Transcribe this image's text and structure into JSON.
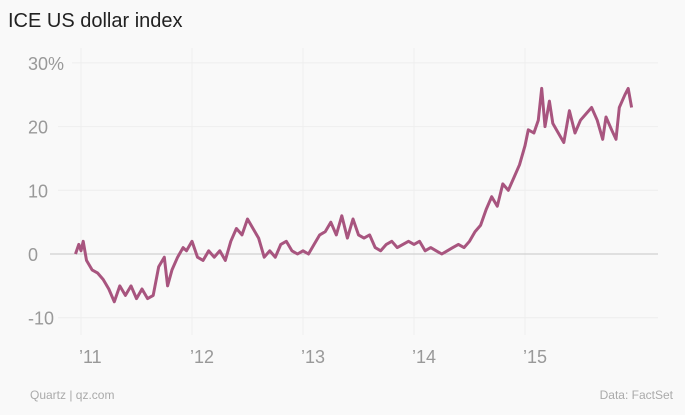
{
  "chart_data": {
    "type": "line",
    "title": "ICE US dollar index",
    "xlabel": "",
    "ylabel": "",
    "ylim": [
      -10,
      30
    ],
    "xlim": [
      2010.9,
      2016.2
    ],
    "y_ticks": [
      {
        "value": 30,
        "label": "30%"
      },
      {
        "value": 20,
        "label": "20"
      },
      {
        "value": 10,
        "label": "10"
      },
      {
        "value": 0,
        "label": "0"
      },
      {
        "value": -10,
        "label": "-10"
      }
    ],
    "x_ticks": [
      {
        "value": 2011,
        "label": "’11"
      },
      {
        "value": 2012,
        "label": "’12"
      },
      {
        "value": 2013,
        "label": "’13"
      },
      {
        "value": 2014,
        "label": "’14"
      },
      {
        "value": 2015,
        "label": "’15"
      }
    ],
    "grid": true,
    "series": [
      {
        "name": "ICE US dollar index",
        "color": "#a8557f",
        "x": [
          2010.95,
          2010.98,
          2011.0,
          2011.02,
          2011.05,
          2011.1,
          2011.15,
          2011.2,
          2011.25,
          2011.3,
          2011.35,
          2011.4,
          2011.45,
          2011.5,
          2011.55,
          2011.6,
          2011.65,
          2011.7,
          2011.75,
          2011.78,
          2011.82,
          2011.87,
          2011.92,
          2011.95,
          2012.0,
          2012.05,
          2012.1,
          2012.15,
          2012.2,
          2012.25,
          2012.3,
          2012.35,
          2012.4,
          2012.45,
          2012.5,
          2012.55,
          2012.6,
          2012.65,
          2012.7,
          2012.75,
          2012.8,
          2012.85,
          2012.9,
          2012.95,
          2013.0,
          2013.05,
          2013.1,
          2013.15,
          2013.2,
          2013.25,
          2013.3,
          2013.35,
          2013.4,
          2013.45,
          2013.5,
          2013.55,
          2013.6,
          2013.65,
          2013.7,
          2013.75,
          2013.8,
          2013.85,
          2013.9,
          2013.95,
          2014.0,
          2014.05,
          2014.1,
          2014.15,
          2014.2,
          2014.25,
          2014.3,
          2014.35,
          2014.4,
          2014.45,
          2014.5,
          2014.55,
          2014.6,
          2014.65,
          2014.7,
          2014.75,
          2014.8,
          2014.85,
          2014.9,
          2014.95,
          2015.0,
          2015.03,
          2015.08,
          2015.12,
          2015.15,
          2015.18,
          2015.22,
          2015.25,
          2015.3,
          2015.35,
          2015.4,
          2015.45,
          2015.5,
          2015.55,
          2015.6,
          2015.65,
          2015.7,
          2015.73,
          2015.78,
          2015.82,
          2015.85,
          2015.9,
          2015.93,
          2015.96
        ],
        "y": [
          0,
          1.5,
          0.5,
          2,
          -1,
          -2.5,
          -3,
          -4,
          -5.5,
          -7.5,
          -5,
          -6.5,
          -5,
          -7,
          -5.5,
          -7,
          -6.5,
          -2,
          -0.5,
          -5,
          -2.5,
          -0.5,
          1,
          0.5,
          2,
          -0.5,
          -1,
          0.5,
          -0.5,
          0.5,
          -1,
          2,
          4,
          3,
          5.5,
          4,
          2.5,
          -0.5,
          0.5,
          -0.5,
          1.5,
          2,
          0.5,
          0,
          0.5,
          0,
          1.5,
          3,
          3.5,
          5,
          3,
          6,
          2.5,
          5.5,
          3,
          2.5,
          3,
          1,
          0.5,
          1.5,
          2,
          1,
          1.5,
          2,
          1.5,
          2,
          0.5,
          1,
          0.5,
          0,
          0.5,
          1,
          1.5,
          1,
          2,
          3.5,
          4.5,
          7,
          9,
          7.5,
          11,
          10,
          12,
          14,
          17,
          19.5,
          19,
          21,
          26,
          20,
          24,
          20.5,
          19,
          17.5,
          22.5,
          19,
          21,
          22,
          23,
          21,
          18,
          21.5,
          19.5,
          18,
          23,
          25,
          26,
          23
        ]
      }
    ]
  },
  "footer": {
    "left": "Quartz | qz.com",
    "right": "Data: FactSet"
  }
}
